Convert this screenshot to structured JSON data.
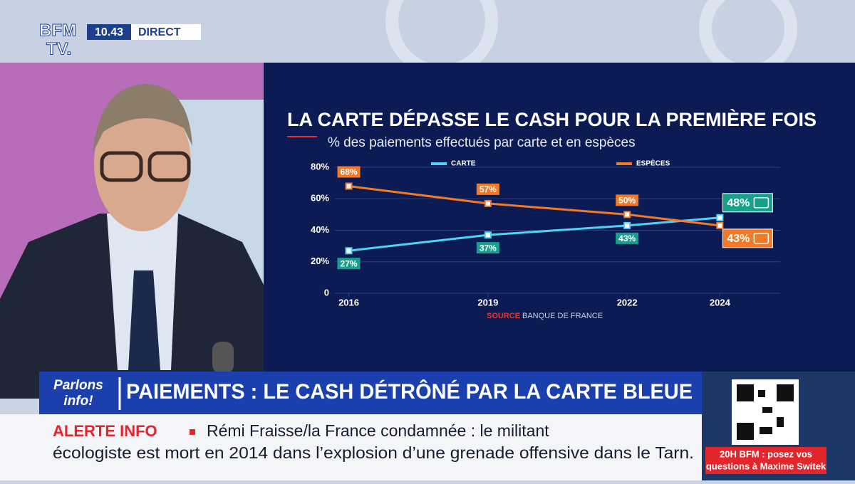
{
  "header": {
    "logo_top": "BFM",
    "logo_bottom": "TV.",
    "time": "10.43",
    "live": "DIRECT"
  },
  "chart_data": {
    "type": "line",
    "title": "LA CARTE DÉPASSE LE CASH POUR LA PREMIÈRE FOIS",
    "subtitle": "% des paiements effectués par carte et en espèces",
    "x": [
      2016,
      2019,
      2022,
      2024
    ],
    "xlim": [
      2015.7,
      2025.3
    ],
    "xticks": [
      2016,
      2019,
      2022,
      2024
    ],
    "ylim": [
      0,
      80
    ],
    "yticks": [
      0,
      {
        "value": 20,
        "label": "20%"
      },
      {
        "value": 40,
        "label": "40%"
      },
      {
        "value": 60,
        "label": "60%"
      },
      {
        "value": 80,
        "label": "80%"
      }
    ],
    "grid": true,
    "series": [
      {
        "name": "CARTE",
        "color": "#4fd3f2",
        "label_color": "#17a08c",
        "values": [
          27,
          37,
          43,
          48
        ],
        "value_labels": [
          "27%",
          "37%",
          "43%",
          "48%"
        ]
      },
      {
        "name": "ESPÈCES",
        "color": "#f07a28",
        "label_color": "#f07a28",
        "values": [
          68,
          57,
          50,
          43
        ],
        "value_labels": [
          "68%",
          "57%",
          "50%",
          "43%"
        ]
      }
    ],
    "source": {
      "label": "SOURCE",
      "text": "BANQUE DE FRANCE"
    }
  },
  "banner": {
    "tag_top": "Parlons",
    "tag_bottom": "info!",
    "headline": "PAIEMENTS : LE CASH DÉTRÔNÉ PAR LA CARTE BLEUE"
  },
  "alert": {
    "label": "ALERTE INFO",
    "lines": [
      "Rémi Fraisse/la France condamnée : le militant",
      "écologiste est mort en 2014 dans l’explosion d’une grenade offensive dans le Tarn."
    ]
  },
  "promo": {
    "line1": "20H BFM : posez vos",
    "line2": "questions à Maxime Switek"
  }
}
